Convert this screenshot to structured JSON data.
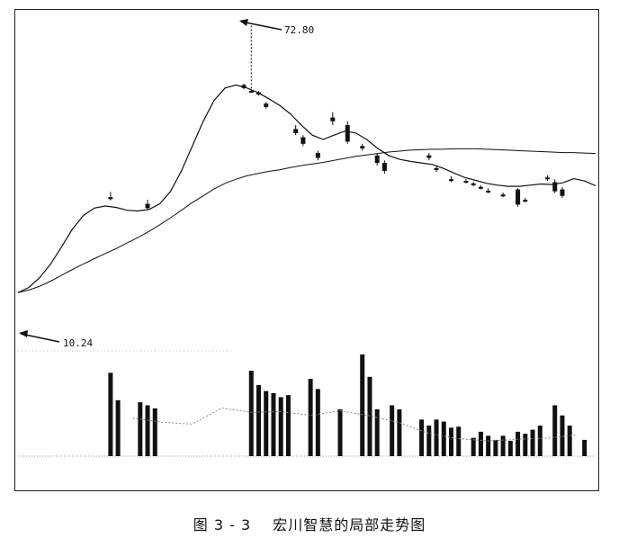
{
  "caption": {
    "figure_number": "图 3 - 3",
    "title": "宏川智慧的局部走势图"
  },
  "chart_data": {
    "type": "candlestick",
    "annotations": [
      {
        "label": "72.80",
        "value": 72.8,
        "point": "high"
      },
      {
        "label": "10.24",
        "value": 10.24,
        "point": "low"
      }
    ],
    "ylim": [
      8,
      78
    ],
    "price_axis": "log",
    "moving_average_short": [
      10.2,
      10.6,
      11.4,
      12.6,
      14.3,
      16.3,
      18.0,
      19.0,
      19.3,
      19.1,
      18.7,
      18.6,
      18.8,
      19.6,
      21.5,
      25.0,
      30.0,
      36.0,
      42.0,
      46.0,
      47.0,
      46.0,
      44.5,
      42.5,
      40.5,
      38.0,
      35.0,
      32.5,
      31.5,
      32.5,
      33.5,
      33.0,
      31.5,
      29.5,
      28.0,
      27.2,
      26.8,
      26.5,
      26.2,
      25.5,
      24.6,
      23.8,
      23.3,
      22.8,
      22.5,
      22.3,
      22.3,
      22.5,
      22.7,
      22.6,
      22.9,
      23.6,
      23.2,
      22.4
    ],
    "moving_average_long": [
      10.2,
      10.4,
      10.7,
      11.1,
      11.6,
      12.1,
      12.6,
      13.1,
      13.6,
      14.1,
      14.7,
      15.3,
      16.0,
      16.8,
      17.7,
      18.7,
      19.8,
      20.8,
      21.9,
      22.8,
      23.5,
      24.1,
      24.5,
      24.9,
      25.2,
      25.6,
      26.0,
      26.3,
      26.6,
      27.0,
      27.4,
      27.8,
      28.1,
      28.4,
      28.7,
      28.9,
      29.1,
      29.2,
      29.3,
      29.3,
      29.4,
      29.4,
      29.4,
      29.3,
      29.2,
      29.1,
      29.0,
      28.9,
      28.8,
      28.7,
      28.6,
      28.6,
      28.5,
      28.4
    ],
    "candles": [
      {
        "i": 12,
        "o": 20.6,
        "h": 21.4,
        "l": 20.1,
        "c": 20.3
      },
      {
        "i": 17,
        "o": 19.6,
        "h": 20.2,
        "l": 18.8,
        "c": 19.0
      },
      {
        "i": 30,
        "o": 47.0,
        "h": 47.5,
        "l": 45.5,
        "c": 46.0
      },
      {
        "i": 31,
        "o": 45.0,
        "h": 72.8,
        "l": 44.0,
        "c": 44.8
      },
      {
        "i": 32,
        "o": 44.5,
        "h": 45.0,
        "l": 43.5,
        "c": 43.8
      },
      {
        "i": 33,
        "o": 41.0,
        "h": 41.5,
        "l": 39.5,
        "c": 40.0
      },
      {
        "i": 37,
        "o": 34.0,
        "h": 35.0,
        "l": 32.5,
        "c": 33.0
      },
      {
        "i": 38,
        "o": 32.0,
        "h": 32.5,
        "l": 30.0,
        "c": 30.5
      },
      {
        "i": 40,
        "o": 28.5,
        "h": 29.0,
        "l": 27.0,
        "c": 27.5
      },
      {
        "i": 42,
        "o": 37.0,
        "h": 38.5,
        "l": 35.0,
        "c": 36.0
      },
      {
        "i": 44,
        "o": 35.0,
        "h": 36.0,
        "l": 30.5,
        "c": 31.0
      },
      {
        "i": 46,
        "o": 30.0,
        "h": 30.5,
        "l": 29.0,
        "c": 29.5
      },
      {
        "i": 48,
        "o": 28.0,
        "h": 28.5,
        "l": 26.0,
        "c": 26.5
      },
      {
        "i": 49,
        "o": 26.5,
        "h": 27.0,
        "l": 24.5,
        "c": 25.0
      },
      {
        "i": 55,
        "o": 28.0,
        "h": 28.5,
        "l": 27.0,
        "c": 27.5
      },
      {
        "i": 56,
        "o": 25.5,
        "h": 26.0,
        "l": 24.8,
        "c": 25.2
      },
      {
        "i": 58,
        "o": 23.5,
        "h": 24.0,
        "l": 23.0,
        "c": 23.2
      },
      {
        "i": 60,
        "o": 23.2,
        "h": 23.5,
        "l": 22.8,
        "c": 23.0
      },
      {
        "i": 61,
        "o": 22.8,
        "h": 23.0,
        "l": 22.3,
        "c": 22.5
      },
      {
        "i": 62,
        "o": 22.2,
        "h": 22.5,
        "l": 21.8,
        "c": 22.0
      },
      {
        "i": 63,
        "o": 21.6,
        "h": 22.0,
        "l": 21.2,
        "c": 21.4
      },
      {
        "i": 65,
        "o": 21.0,
        "h": 21.3,
        "l": 20.6,
        "c": 20.8
      },
      {
        "i": 67,
        "o": 21.8,
        "h": 22.0,
        "l": 19.2,
        "c": 19.5
      },
      {
        "i": 68,
        "o": 20.2,
        "h": 20.5,
        "l": 19.8,
        "c": 20.1
      },
      {
        "i": 71,
        "o": 23.8,
        "h": 24.2,
        "l": 23.2,
        "c": 23.5
      },
      {
        "i": 72,
        "o": 23.0,
        "h": 23.5,
        "l": 21.2,
        "c": 21.5
      },
      {
        "i": 73,
        "o": 21.8,
        "h": 22.2,
        "l": 20.5,
        "c": 20.8
      }
    ],
    "volume": [
      {
        "i": 12,
        "v": 0.82
      },
      {
        "i": 13,
        "v": 0.55
      },
      {
        "i": 16,
        "v": 0.53
      },
      {
        "i": 17,
        "v": 0.5
      },
      {
        "i": 18,
        "v": 0.47
      },
      {
        "i": 31,
        "v": 0.84
      },
      {
        "i": 32,
        "v": 0.7
      },
      {
        "i": 33,
        "v": 0.64
      },
      {
        "i": 34,
        "v": 0.62
      },
      {
        "i": 35,
        "v": 0.58
      },
      {
        "i": 36,
        "v": 0.6
      },
      {
        "i": 39,
        "v": 0.76
      },
      {
        "i": 40,
        "v": 0.66
      },
      {
        "i": 43,
        "v": 0.46
      },
      {
        "i": 46,
        "v": 1.0
      },
      {
        "i": 47,
        "v": 0.78
      },
      {
        "i": 48,
        "v": 0.46
      },
      {
        "i": 50,
        "v": 0.5
      },
      {
        "i": 51,
        "v": 0.46
      },
      {
        "i": 54,
        "v": 0.36
      },
      {
        "i": 55,
        "v": 0.3
      },
      {
        "i": 56,
        "v": 0.36
      },
      {
        "i": 57,
        "v": 0.34
      },
      {
        "i": 58,
        "v": 0.28
      },
      {
        "i": 59,
        "v": 0.29
      },
      {
        "i": 61,
        "v": 0.18
      },
      {
        "i": 62,
        "v": 0.24
      },
      {
        "i": 63,
        "v": 0.2
      },
      {
        "i": 64,
        "v": 0.16
      },
      {
        "i": 65,
        "v": 0.2
      },
      {
        "i": 66,
        "v": 0.15
      },
      {
        "i": 67,
        "v": 0.24
      },
      {
        "i": 68,
        "v": 0.22
      },
      {
        "i": 69,
        "v": 0.26
      },
      {
        "i": 70,
        "v": 0.3
      },
      {
        "i": 72,
        "v": 0.5
      },
      {
        "i": 73,
        "v": 0.4
      },
      {
        "i": 74,
        "v": 0.3
      },
      {
        "i": 76,
        "v": 0.16
      }
    ]
  }
}
